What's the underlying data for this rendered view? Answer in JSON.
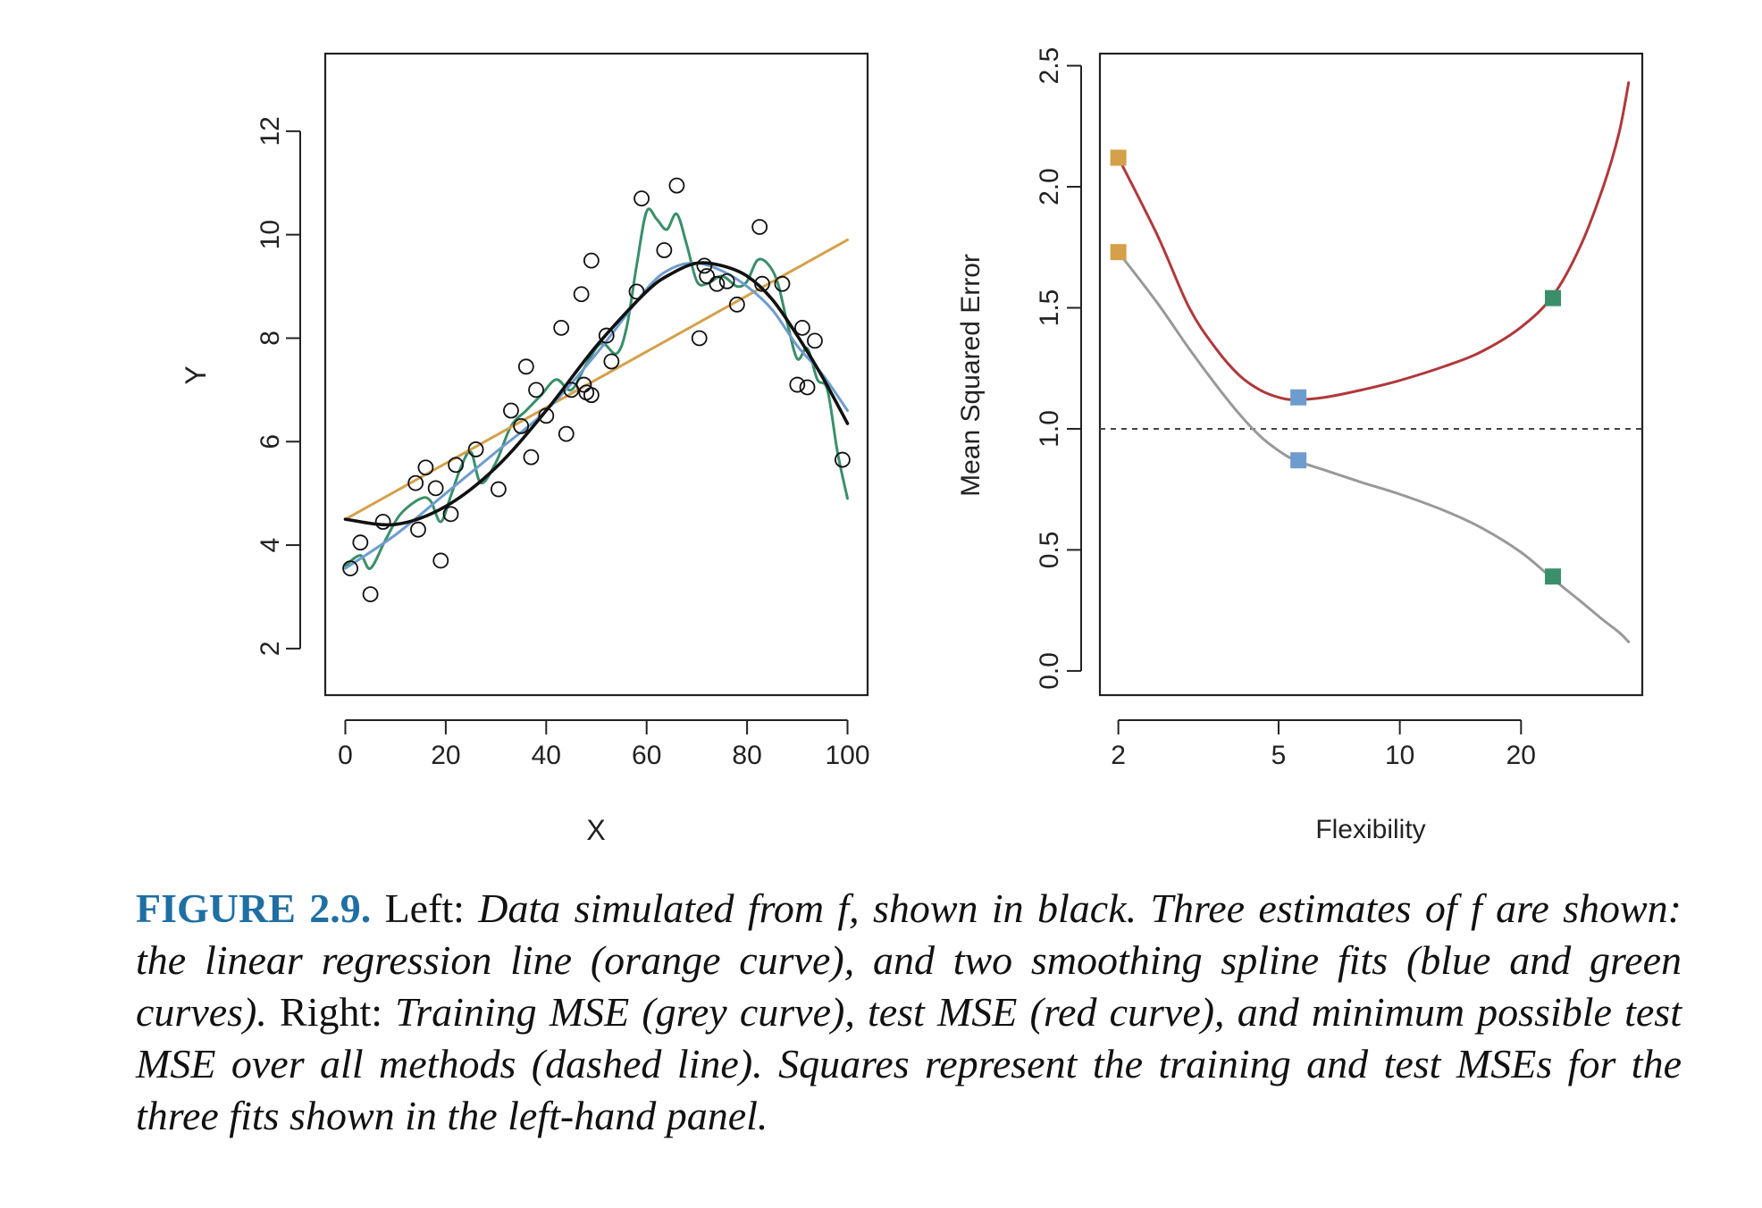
{
  "chart_data": [
    {
      "type": "scatter",
      "panel": "left",
      "xlabel": "X",
      "ylabel": "Y",
      "xlim": [
        -4,
        104
      ],
      "ylim": [
        1.1,
        13.5
      ],
      "xticks": [
        0,
        20,
        40,
        60,
        80,
        100
      ],
      "yticks": [
        2,
        4,
        6,
        8,
        10,
        12
      ],
      "grid": false,
      "legend": "none",
      "points": {
        "x": [
          1,
          3,
          5,
          7.5,
          14,
          14.5,
          16,
          18,
          19,
          21,
          22,
          26,
          30.5,
          33,
          35,
          36,
          37,
          38,
          40,
          43,
          44,
          45,
          47,
          47.5,
          48,
          49,
          49,
          52,
          53,
          58,
          59,
          63.5,
          66,
          70.5,
          71.5,
          72,
          74,
          76,
          78,
          82.5,
          83,
          87,
          90,
          91,
          92,
          93.5,
          99
        ],
        "y": [
          3.55,
          4.05,
          3.05,
          4.45,
          5.2,
          4.3,
          5.5,
          5.1,
          3.7,
          4.6,
          5.55,
          5.85,
          5.08,
          6.6,
          6.3,
          7.45,
          5.7,
          7.0,
          6.5,
          8.2,
          6.15,
          7.0,
          8.85,
          7.1,
          6.95,
          6.9,
          9.5,
          8.05,
          7.55,
          8.9,
          10.7,
          9.7,
          10.95,
          8.0,
          9.4,
          9.2,
          9.05,
          9.1,
          8.65,
          10.15,
          9.05,
          9.05,
          7.1,
          8.2,
          7.05,
          7.95,
          5.65
        ]
      },
      "series": [
        {
          "name": "",
          "color": "#111111",
          "x": [
            0,
            10,
            20,
            30,
            40,
            50,
            60,
            65,
            70,
            75,
            80,
            85,
            90,
            95,
            100
          ],
          "y": [
            4.5,
            4.4,
            4.75,
            5.5,
            6.6,
            7.85,
            8.9,
            9.25,
            9.45,
            9.4,
            9.2,
            8.75,
            8.05,
            7.25,
            6.35
          ]
        },
        {
          "name": "",
          "color": "#d4a04a",
          "x": [
            0,
            100
          ],
          "y": [
            4.5,
            9.9
          ]
        },
        {
          "name": "",
          "color": "#6f9ccf",
          "x": [
            0,
            10,
            20,
            30,
            40,
            50,
            60,
            65,
            70,
            75,
            80,
            85,
            90,
            95,
            100
          ],
          "y": [
            3.55,
            4.2,
            5.0,
            5.8,
            6.6,
            7.7,
            8.95,
            9.35,
            9.45,
            9.3,
            9.0,
            8.55,
            7.85,
            7.3,
            6.6
          ]
        },
        {
          "name": "",
          "color": "#3a8f6a",
          "x": [
            0,
            3,
            5,
            8,
            11,
            15,
            17,
            19,
            21,
            23,
            25,
            27,
            30,
            33,
            36,
            39,
            42,
            45,
            48,
            51,
            54,
            56,
            58,
            60,
            62,
            64,
            66,
            68,
            70,
            72,
            75,
            78,
            80,
            82,
            84,
            86,
            88,
            90,
            92,
            94,
            96,
            98,
            100
          ],
          "y": [
            3.6,
            3.8,
            3.55,
            4.1,
            4.6,
            4.9,
            4.85,
            4.45,
            4.95,
            5.5,
            5.8,
            5.2,
            5.6,
            6.3,
            6.6,
            6.9,
            7.2,
            7.0,
            7.5,
            7.9,
            7.7,
            8.2,
            9.4,
            10.45,
            10.3,
            10.1,
            10.4,
            9.8,
            9.1,
            9.05,
            9.2,
            9.0,
            9.1,
            9.5,
            9.45,
            9.1,
            8.3,
            7.6,
            7.8,
            7.2,
            7.0,
            5.8,
            4.9
          ]
        }
      ]
    },
    {
      "type": "line",
      "panel": "right",
      "xlabel": "Flexibility",
      "ylabel": "Mean Squared Error",
      "xscale": "log",
      "xlim": [
        1.8,
        40
      ],
      "ylim": [
        -0.1,
        2.55
      ],
      "xticks": [
        2,
        5,
        10,
        20
      ],
      "yticks": [
        "0.0",
        "0.5",
        "1.0",
        "1.5",
        "2.0",
        "2.5"
      ],
      "grid": false,
      "legend": "none",
      "reference_line": {
        "y": 1.0,
        "style": "dashed",
        "color": "#444444"
      },
      "series": [
        {
          "name": "",
          "color": "#b0383a",
          "x": [
            2,
            2.5,
            3,
            3.5,
            4,
            4.5,
            5,
            5.5,
            6.5,
            8,
            10,
            13,
            16,
            20,
            24,
            28,
            32,
            35,
            37
          ],
          "y": [
            2.12,
            1.8,
            1.5,
            1.33,
            1.22,
            1.16,
            1.13,
            1.12,
            1.13,
            1.16,
            1.2,
            1.26,
            1.32,
            1.42,
            1.55,
            1.75,
            2.0,
            2.22,
            2.43
          ]
        },
        {
          "name": "",
          "color": "#999999",
          "x": [
            2,
            2.5,
            3,
            3.5,
            4,
            4.5,
            5,
            5.5,
            6.5,
            8,
            10,
            13,
            16,
            20,
            24,
            28,
            32,
            35,
            37
          ],
          "y": [
            1.73,
            1.52,
            1.33,
            1.18,
            1.06,
            0.97,
            0.91,
            0.87,
            0.83,
            0.78,
            0.73,
            0.66,
            0.59,
            0.49,
            0.38,
            0.29,
            0.21,
            0.16,
            0.12
          ]
        }
      ],
      "markers": [
        {
          "x": 2,
          "y": 2.12,
          "color": "#d4a04a"
        },
        {
          "x": 2,
          "y": 1.73,
          "color": "#d4a04a"
        },
        {
          "x": 5.6,
          "y": 1.13,
          "color": "#6f9ccf"
        },
        {
          "x": 5.6,
          "y": 0.87,
          "color": "#6f9ccf"
        },
        {
          "x": 24,
          "y": 1.54,
          "color": "#3a8f6a"
        },
        {
          "x": 24,
          "y": 0.39,
          "color": "#3a8f6a"
        }
      ]
    }
  ],
  "caption": {
    "label": "FIGURE 2.9.",
    "segments": [
      {
        "style": "up",
        "text": " Left: "
      },
      {
        "style": "it",
        "text": "Data simulated from f, shown in black. Three estimates of f are shown: the linear regression line (orange curve), and two smoothing spline fits (blue and green curves)."
      },
      {
        "style": "up",
        "text": " Right: "
      },
      {
        "style": "it",
        "text": "Training MSE (grey curve), test MSE (red curve), and minimum possible test MSE over all methods (dashed line). Squares represent the training and test MSEs for the three fits shown in the left-hand panel."
      }
    ]
  }
}
